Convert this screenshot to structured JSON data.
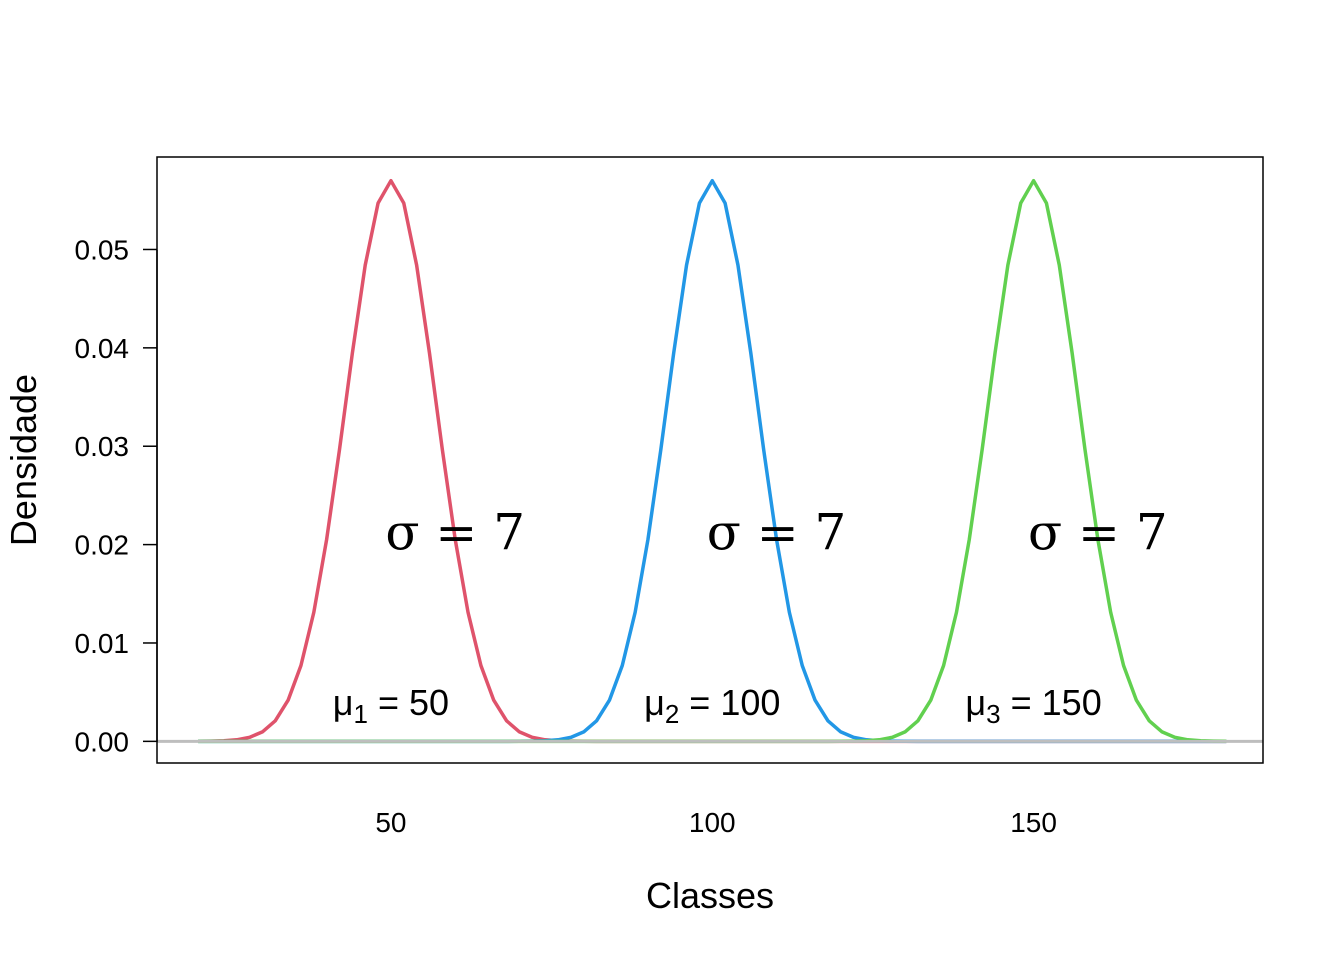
{
  "chart_data": {
    "type": "line",
    "title": "",
    "xlabel": "Classes",
    "ylabel": "Densidade",
    "xlim": [
      13.6,
      185.7
    ],
    "ylim": [
      -0.0022,
      0.0594
    ],
    "x_ticks": [
      50,
      100,
      150
    ],
    "x_tick_labels": [
      "50",
      "100",
      "150"
    ],
    "y_ticks": [
      0.0,
      0.01,
      0.02,
      0.03,
      0.04,
      0.05
    ],
    "y_tick_labels": [
      "0.00",
      "0.01",
      "0.02",
      "0.03",
      "0.04",
      "0.05"
    ],
    "grid": false,
    "sd": 7,
    "x_range": [
      20,
      180
    ],
    "x_step": 2,
    "series": [
      {
        "mean": 50,
        "color": "#DF536B"
      },
      {
        "mean": 100,
        "color": "#2297E6"
      },
      {
        "mean": 150,
        "color": "#61D04F"
      }
    ],
    "baseline": {
      "y": 0,
      "color": "#BEBEBE"
    },
    "annotations": [
      {
        "text": "μ",
        "sub": "1",
        "suffix": " = 50",
        "x": 50,
        "y": 0.0027,
        "kind": "mean"
      },
      {
        "text": "μ",
        "sub": "2",
        "suffix": " = 100",
        "x": 100,
        "y": 0.0027,
        "kind": "mean"
      },
      {
        "text": "μ",
        "sub": "3",
        "suffix": " = 150",
        "x": 150,
        "y": 0.0027,
        "kind": "mean"
      },
      {
        "text": "σ = 7",
        "x": 60,
        "y": 0.0195,
        "kind": "sd"
      },
      {
        "text": "σ = 7",
        "x": 110,
        "y": 0.0195,
        "kind": "sd"
      },
      {
        "text": "σ = 7",
        "x": 160,
        "y": 0.0195,
        "kind": "sd"
      }
    ]
  }
}
